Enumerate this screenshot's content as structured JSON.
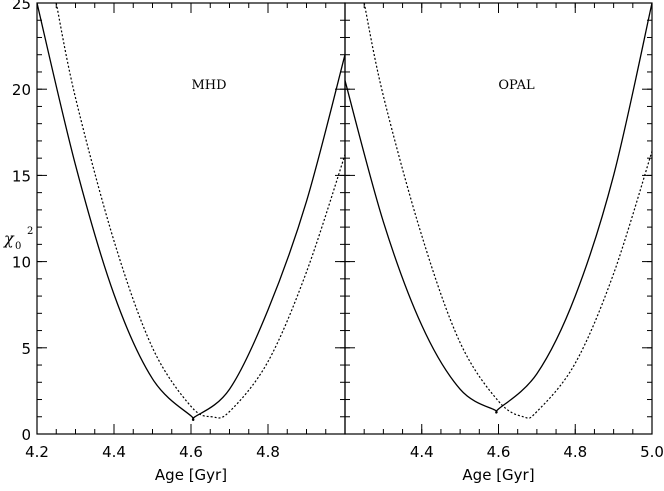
{
  "chart_data": {
    "type": "line",
    "ylabel": "χ",
    "ylabel_subscript": "0",
    "ylabel_superscript": "2",
    "ylim": [
      0,
      25
    ],
    "yticks": [
      0,
      5,
      10,
      15,
      20,
      25
    ],
    "yticklabels": [
      "0",
      "5",
      "10",
      "15",
      "20",
      "25"
    ],
    "panels": [
      {
        "annotation": "MHD",
        "xlabel": "Age [Gyr]",
        "xlim": [
          4.2,
          5.0
        ],
        "xticks": [
          4.2,
          4.4,
          4.6,
          4.8
        ],
        "xticklabels": [
          "4.2",
          "4.4",
          "4.6",
          "4.8"
        ],
        "series": [
          {
            "style": "solid",
            "min_x": 4.61,
            "min_y": 1.0,
            "x": [
              4.2,
              4.3,
              4.4,
              4.5,
              4.6,
              4.61,
              4.7,
              4.8,
              4.9,
              5.0
            ],
            "y": [
              25.0,
              15.6,
              8.1,
              3.2,
              1.05,
              1.0,
              2.6,
              7.2,
              13.5,
              22.0
            ]
          },
          {
            "style": "dotted",
            "min_x": 4.655,
            "min_y": 1.0,
            "x": [
              4.25,
              4.3,
              4.4,
              4.5,
              4.6,
              4.655,
              4.7,
              4.8,
              4.9,
              5.0
            ],
            "y": [
              25.0,
              19.5,
              11.2,
              5.0,
              1.6,
              1.0,
              1.3,
              4.2,
              9.4,
              16.2
            ]
          }
        ]
      },
      {
        "annotation": "OPAL",
        "xlabel": "Age [Gyr]",
        "xlim": [
          4.2,
          5.0
        ],
        "xticks": [
          4.4,
          4.6,
          4.8,
          5.0
        ],
        "xticklabels": [
          "4.4",
          "4.6",
          "4.8",
          "5.0"
        ],
        "series": [
          {
            "style": "solid",
            "min_x": 4.59,
            "min_y": 1.4,
            "x": [
              4.2,
              4.3,
              4.4,
              4.5,
              4.59,
              4.6,
              4.7,
              4.8,
              4.9,
              5.0
            ],
            "y": [
              20.5,
              12.3,
              6.3,
              2.6,
              1.4,
              1.45,
              3.5,
              8.0,
              15.0,
              25.0
            ]
          },
          {
            "style": "dotted",
            "min_x": 4.665,
            "min_y": 1.0,
            "x": [
              4.25,
              4.3,
              4.4,
              4.5,
              4.6,
              4.665,
              4.7,
              4.8,
              4.9,
              5.0
            ],
            "y": [
              25.0,
              19.6,
              11.5,
              5.3,
              1.9,
              1.0,
              1.3,
              4.1,
              9.3,
              16.4
            ]
          }
        ]
      }
    ]
  }
}
